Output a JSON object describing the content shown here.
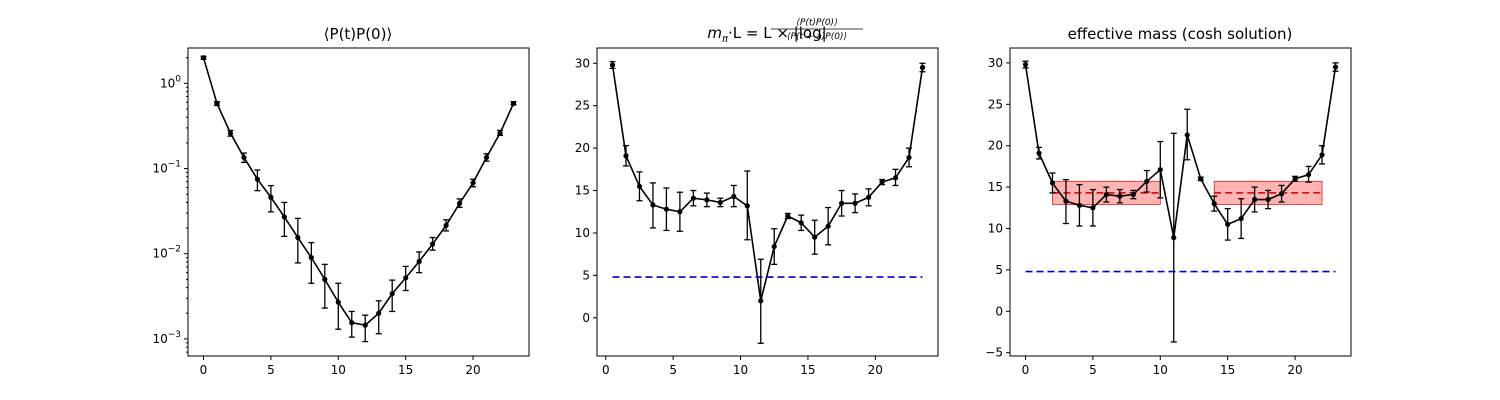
{
  "chart_data": [
    {
      "type": "line",
      "title": "⟨P(t)P(0)⟩",
      "yscale": "log",
      "xlim": [
        -1.15,
        24.15
      ],
      "ylim": [
        0.00063,
        2.6
      ],
      "xticks": [
        0,
        5,
        10,
        15,
        20
      ],
      "yticks": [
        {
          "value": 1,
          "mantissa": "10",
          "exponent": "0"
        },
        {
          "value": 0.1,
          "mantissa": "10",
          "exponent": "−1"
        },
        {
          "value": 0.01,
          "mantissa": "10",
          "exponent": "−2"
        },
        {
          "value": 0.001,
          "mantissa": "10",
          "exponent": "−3"
        }
      ],
      "series": [
        {
          "color": "#000000",
          "marker": "dot",
          "x": [
            0,
            1,
            2,
            3,
            4,
            5,
            6,
            7,
            8,
            9,
            10,
            11,
            12,
            13,
            14,
            15,
            16,
            17,
            18,
            19,
            20,
            21,
            22,
            23
          ],
          "y": [
            2.0,
            0.58,
            0.26,
            0.135,
            0.075,
            0.046,
            0.027,
            0.0155,
            0.009,
            0.005,
            0.0027,
            0.00155,
            0.00145,
            0.002,
            0.0034,
            0.0052,
            0.0081,
            0.013,
            0.0215,
            0.039,
            0.068,
            0.135,
            0.26,
            0.58
          ],
          "y_lower": [
            1.92,
            0.55,
            0.24,
            0.118,
            0.055,
            0.031,
            0.016,
            0.0078,
            0.0045,
            0.0023,
            0.0013,
            0.00105,
            0.00093,
            0.00115,
            0.0021,
            0.0037,
            0.006,
            0.011,
            0.0185,
            0.035,
            0.061,
            0.122,
            0.245,
            0.56
          ],
          "y_upper": [
            2.08,
            0.61,
            0.28,
            0.152,
            0.096,
            0.063,
            0.04,
            0.026,
            0.0135,
            0.0075,
            0.0045,
            0.0021,
            0.0019,
            0.0028,
            0.0049,
            0.0071,
            0.0105,
            0.0155,
            0.025,
            0.044,
            0.075,
            0.149,
            0.28,
            0.61
          ]
        }
      ]
    },
    {
      "type": "line",
      "title_parts": {
        "m": "m",
        "m_sub": "π",
        "mid": "·L = L × |log",
        "numerator": "⟨P(t)P(0)⟩",
        "denominator": "⟨P(t + a)P(0)⟩",
        "end": "|"
      },
      "xlim": [
        -0.65,
        24.65
      ],
      "ylim": [
        -4.5,
        31.8
      ],
      "xticks": [
        0,
        5,
        10,
        15,
        20
      ],
      "yticks": [
        0,
        5,
        10,
        15,
        20,
        25,
        30
      ],
      "series": [
        {
          "color": "#000000",
          "marker": "dot",
          "x": [
            0.5,
            1.5,
            2.5,
            3.5,
            4.5,
            5.5,
            6.5,
            7.5,
            8.5,
            9.5,
            10.5,
            11.5,
            12.5,
            13.5,
            14.5,
            15.5,
            16.5,
            17.5,
            18.5,
            19.5,
            20.5,
            21.5,
            22.5,
            23.5
          ],
          "y": [
            29.8,
            19.1,
            15.5,
            13.3,
            12.8,
            12.5,
            14.1,
            13.9,
            13.6,
            14.3,
            13.2,
            2.0,
            8.4,
            12.0,
            11.2,
            9.5,
            10.8,
            13.5,
            13.5,
            14.2,
            16.0,
            16.5,
            18.9,
            29.5
          ],
          "y_lower": [
            29.4,
            17.9,
            13.8,
            10.6,
            10.3,
            10.2,
            13.2,
            13.1,
            13.1,
            13.1,
            9.2,
            -3.0,
            6.3,
            11.7,
            10.3,
            7.5,
            8.6,
            12.0,
            12.4,
            13.2,
            15.7,
            15.6,
            17.8,
            29.0
          ],
          "y_upper": [
            30.2,
            20.3,
            17.2,
            15.9,
            15.3,
            14.8,
            15.0,
            14.7,
            14.1,
            15.6,
            17.3,
            6.9,
            10.5,
            12.3,
            12.1,
            11.5,
            13.0,
            15.0,
            14.6,
            15.2,
            16.3,
            17.5,
            20.0,
            30.0
          ]
        },
        {
          "color": "#0000cc",
          "style": "dashed",
          "x": [
            0.5,
            23.5
          ],
          "y": [
            4.8,
            4.8
          ]
        }
      ]
    },
    {
      "type": "line",
      "title": "effective mass (cosh solution)",
      "xlim": [
        -1.15,
        24.15
      ],
      "ylim": [
        -5.4,
        31.8
      ],
      "xticks": [
        0,
        5,
        10,
        15,
        20
      ],
      "yticks": [
        -5,
        0,
        5,
        10,
        15,
        20,
        25,
        30
      ],
      "bands": [
        {
          "x": [
            2,
            10
          ],
          "y_low": 12.9,
          "y_high": 15.7,
          "center": 14.3,
          "fill": "#ff9999",
          "edge": "#dd2222"
        },
        {
          "x": [
            14,
            22
          ],
          "y_low": 12.9,
          "y_high": 15.7,
          "center": 14.3,
          "fill": "#ff9999",
          "edge": "#dd2222"
        }
      ],
      "series": [
        {
          "color": "#000000",
          "marker": "dot",
          "x": [
            0,
            1,
            2,
            3,
            4,
            5,
            6,
            7,
            8,
            9,
            10,
            11,
            12,
            13,
            14,
            15,
            16,
            17,
            18,
            19,
            20,
            21,
            22,
            23
          ],
          "y": [
            29.8,
            19.1,
            15.5,
            13.3,
            12.8,
            12.5,
            14.1,
            13.9,
            14.1,
            15.7,
            17.1,
            8.9,
            21.3,
            16.0,
            13.0,
            10.5,
            11.2,
            13.5,
            13.5,
            14.2,
            16.0,
            16.5,
            18.9,
            29.5
          ],
          "y_lower": [
            29.4,
            18.4,
            14.3,
            10.6,
            10.3,
            10.3,
            13.2,
            13.1,
            13.6,
            14.4,
            13.7,
            -3.7,
            18.3,
            15.8,
            12.1,
            8.6,
            8.8,
            12.0,
            12.4,
            13.2,
            15.7,
            15.6,
            17.8,
            29.0
          ],
          "y_upper": [
            30.2,
            19.8,
            16.7,
            15.9,
            15.3,
            14.7,
            15.0,
            14.7,
            14.6,
            17.0,
            20.5,
            21.5,
            24.4,
            16.2,
            13.9,
            12.4,
            13.6,
            15.0,
            14.6,
            15.2,
            16.3,
            17.5,
            20.0,
            30.0
          ]
        },
        {
          "color": "#0000cc",
          "style": "dashed",
          "x": [
            0,
            23
          ],
          "y": [
            4.8,
            4.8
          ]
        }
      ]
    }
  ]
}
